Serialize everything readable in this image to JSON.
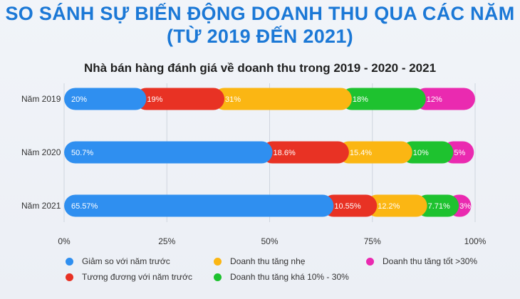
{
  "header": {
    "title_line1": "SO SÁNH SỰ BIẾN ĐỘNG DOANH THU QUA CÁC NĂM",
    "title_line2": "(TỪ 2019 ĐẾN 2021)"
  },
  "chart_data": {
    "type": "bar",
    "orientation": "horizontal",
    "stacked": true,
    "title": "Nhà bán hàng đánh giá về doanh thu trong 2019 - 2020 - 2021",
    "categories": [
      "Năm 2019",
      "Năm 2020",
      "Năm 2021"
    ],
    "xlim": [
      0,
      100
    ],
    "xticks": [
      "0%",
      "25%",
      "50%",
      "75%",
      "100%"
    ],
    "grid": true,
    "legend_position": "bottom",
    "series": [
      {
        "name": "Giảm so với năm trước",
        "color": "#2f8ff0",
        "values": [
          20,
          50.7,
          65.57
        ],
        "labels": [
          "20%",
          "50.7%",
          "65.57%"
        ]
      },
      {
        "name": "Tương đương với năm trước",
        "color": "#e83224",
        "values": [
          19,
          18.6,
          10.55
        ],
        "labels": [
          "19%",
          "18.6%",
          "10.55%"
        ]
      },
      {
        "name": "Doanh thu tăng nhẹ",
        "color": "#fbb613",
        "values": [
          31,
          15.4,
          12.2
        ],
        "labels": [
          "31%",
          "15.4%",
          "12.2%"
        ]
      },
      {
        "name": "Doanh thu tăng khá 10% - 30%",
        "color": "#1ec22f",
        "values": [
          18,
          10,
          7.71
        ],
        "labels": [
          "18%",
          "10%",
          "7.71%"
        ]
      },
      {
        "name": "Doanh thu tăng tốt >30%",
        "color": "#ea2ab0",
        "values": [
          12,
          5,
          3
        ],
        "labels": [
          "12%",
          "5%",
          "3%"
        ]
      }
    ]
  }
}
